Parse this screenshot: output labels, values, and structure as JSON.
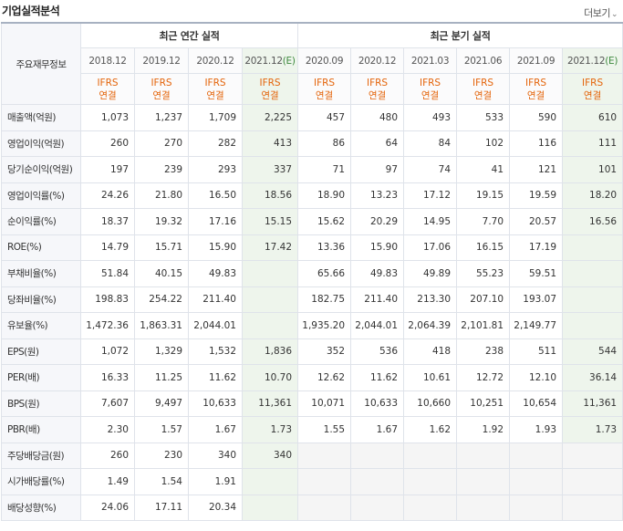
{
  "title": "기업실적분석",
  "more_label": "더보기",
  "more_icon": "chevron-down-icon",
  "row_header_label": "주요재무정보",
  "group_annual": "최근 연간 실적",
  "group_quarter": "최근 분기 실적",
  "periods": [
    {
      "date": "2018.12",
      "est": ""
    },
    {
      "date": "2019.12",
      "est": ""
    },
    {
      "date": "2020.12",
      "est": ""
    },
    {
      "date": "2021.12",
      "est": "(E)"
    },
    {
      "date": "2020.09",
      "est": ""
    },
    {
      "date": "2020.12",
      "est": ""
    },
    {
      "date": "2021.03",
      "est": ""
    },
    {
      "date": "2021.06",
      "est": ""
    },
    {
      "date": "2021.09",
      "est": ""
    },
    {
      "date": "2021.12",
      "est": "(E)"
    }
  ],
  "ifrs_line1": "IFRS",
  "ifrs_line2": "연결",
  "rows": [
    {
      "label": "매출액(억원)",
      "values": [
        "1,073",
        "1,237",
        "1,709",
        "2,225",
        "457",
        "480",
        "493",
        "533",
        "590",
        "610"
      ]
    },
    {
      "label": "영업이익(억원)",
      "values": [
        "260",
        "270",
        "282",
        "413",
        "86",
        "64",
        "84",
        "102",
        "116",
        "111"
      ]
    },
    {
      "label": "당기순이익(억원)",
      "values": [
        "197",
        "239",
        "293",
        "337",
        "71",
        "97",
        "74",
        "41",
        "121",
        "101"
      ]
    },
    {
      "label": "영업이익률(%)",
      "values": [
        "24.26",
        "21.80",
        "16.50",
        "18.56",
        "18.90",
        "13.23",
        "17.12",
        "19.15",
        "19.59",
        "18.20"
      ]
    },
    {
      "label": "순이익률(%)",
      "values": [
        "18.37",
        "19.32",
        "17.16",
        "15.15",
        "15.62",
        "20.29",
        "14.95",
        "7.70",
        "20.57",
        "16.56"
      ]
    },
    {
      "label": "ROE(%)",
      "values": [
        "14.79",
        "15.71",
        "15.90",
        "17.42",
        "13.36",
        "15.90",
        "17.06",
        "16.15",
        "17.19",
        ""
      ]
    },
    {
      "label": "부채비율(%)",
      "values": [
        "51.84",
        "40.15",
        "49.83",
        "",
        "65.66",
        "49.83",
        "49.89",
        "55.23",
        "59.51",
        ""
      ]
    },
    {
      "label": "당좌비율(%)",
      "values": [
        "198.83",
        "254.22",
        "211.40",
        "",
        "182.75",
        "211.40",
        "213.30",
        "207.10",
        "193.07",
        ""
      ]
    },
    {
      "label": "유보율(%)",
      "values": [
        "1,472.36",
        "1,863.31",
        "2,044.01",
        "",
        "1,935.20",
        "2,044.01",
        "2,064.39",
        "2,101.81",
        "2,149.77",
        ""
      ]
    },
    {
      "label": "EPS(원)",
      "values": [
        "1,072",
        "1,329",
        "1,532",
        "1,836",
        "352",
        "536",
        "418",
        "238",
        "511",
        "544"
      ]
    },
    {
      "label": "PER(배)",
      "values": [
        "16.33",
        "11.25",
        "11.62",
        "10.70",
        "12.62",
        "11.62",
        "10.61",
        "12.72",
        "12.10",
        "36.14"
      ]
    },
    {
      "label": "BPS(원)",
      "values": [
        "7,607",
        "9,497",
        "10,633",
        "11,361",
        "10,071",
        "10,633",
        "10,660",
        "10,251",
        "10,654",
        "11,361"
      ]
    },
    {
      "label": "PBR(배)",
      "values": [
        "2.30",
        "1.57",
        "1.67",
        "1.73",
        "1.55",
        "1.67",
        "1.62",
        "1.92",
        "1.93",
        "1.73"
      ]
    },
    {
      "label": "주당배당금(원)",
      "values": [
        "260",
        "230",
        "340",
        "340",
        "",
        "",
        "",
        "",
        "",
        ""
      ]
    },
    {
      "label": "시가배당률(%)",
      "values": [
        "1.49",
        "1.54",
        "1.91",
        "",
        "",
        "",
        "",
        "",
        "",
        ""
      ]
    },
    {
      "label": "배당성향(%)",
      "values": [
        "24.06",
        "17.11",
        "20.34",
        "",
        "",
        "",
        "",
        "",
        "",
        ""
      ]
    }
  ]
}
